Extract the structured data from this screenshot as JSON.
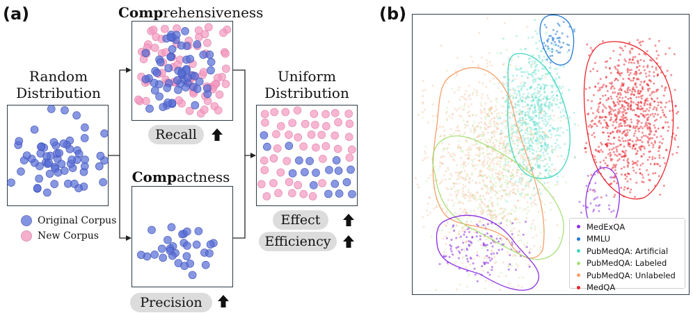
{
  "panel_a": {
    "label": "(a)",
    "random": {
      "line1": "Random",
      "line2": "Distribution"
    },
    "comprehensiveness": {
      "bold": "Comp",
      "rest": "rehensiveness"
    },
    "compactness": {
      "bold": "Comp",
      "rest": "actness"
    },
    "uniform": {
      "line1": "Uniform",
      "line2": "Distribution"
    },
    "recall_label": "Recall",
    "precision_label": "Precision",
    "effect_label": "Effect",
    "efficiency_label": "Efficiency",
    "legend": [
      {
        "label": "Original Corpus",
        "color": "#5a6fd6"
      },
      {
        "label": "New Corpus",
        "color": "#f49ac1"
      }
    ],
    "arrow_icon": "up-arrow-icon"
  },
  "panel_b": {
    "label": "(b)",
    "legend": [
      {
        "label": "MedExQA",
        "color": "#8a2be2"
      },
      {
        "label": "MMLU",
        "color": "#1f77d4"
      },
      {
        "label": "PubMedQA: Artificial",
        "color": "#3fd6c0"
      },
      {
        "label": "PubMedQA: Labeled",
        "color": "#a6e07a"
      },
      {
        "label": "PubMedQA: Unlabeled",
        "color": "#f2a06a"
      },
      {
        "label": "MedQA",
        "color": "#e8222a"
      }
    ]
  },
  "colors": {
    "blue": "#5a6fd6",
    "pink": "#f49ac1",
    "box_border": "#2a3a45",
    "pill": "#dcdcdc"
  }
}
